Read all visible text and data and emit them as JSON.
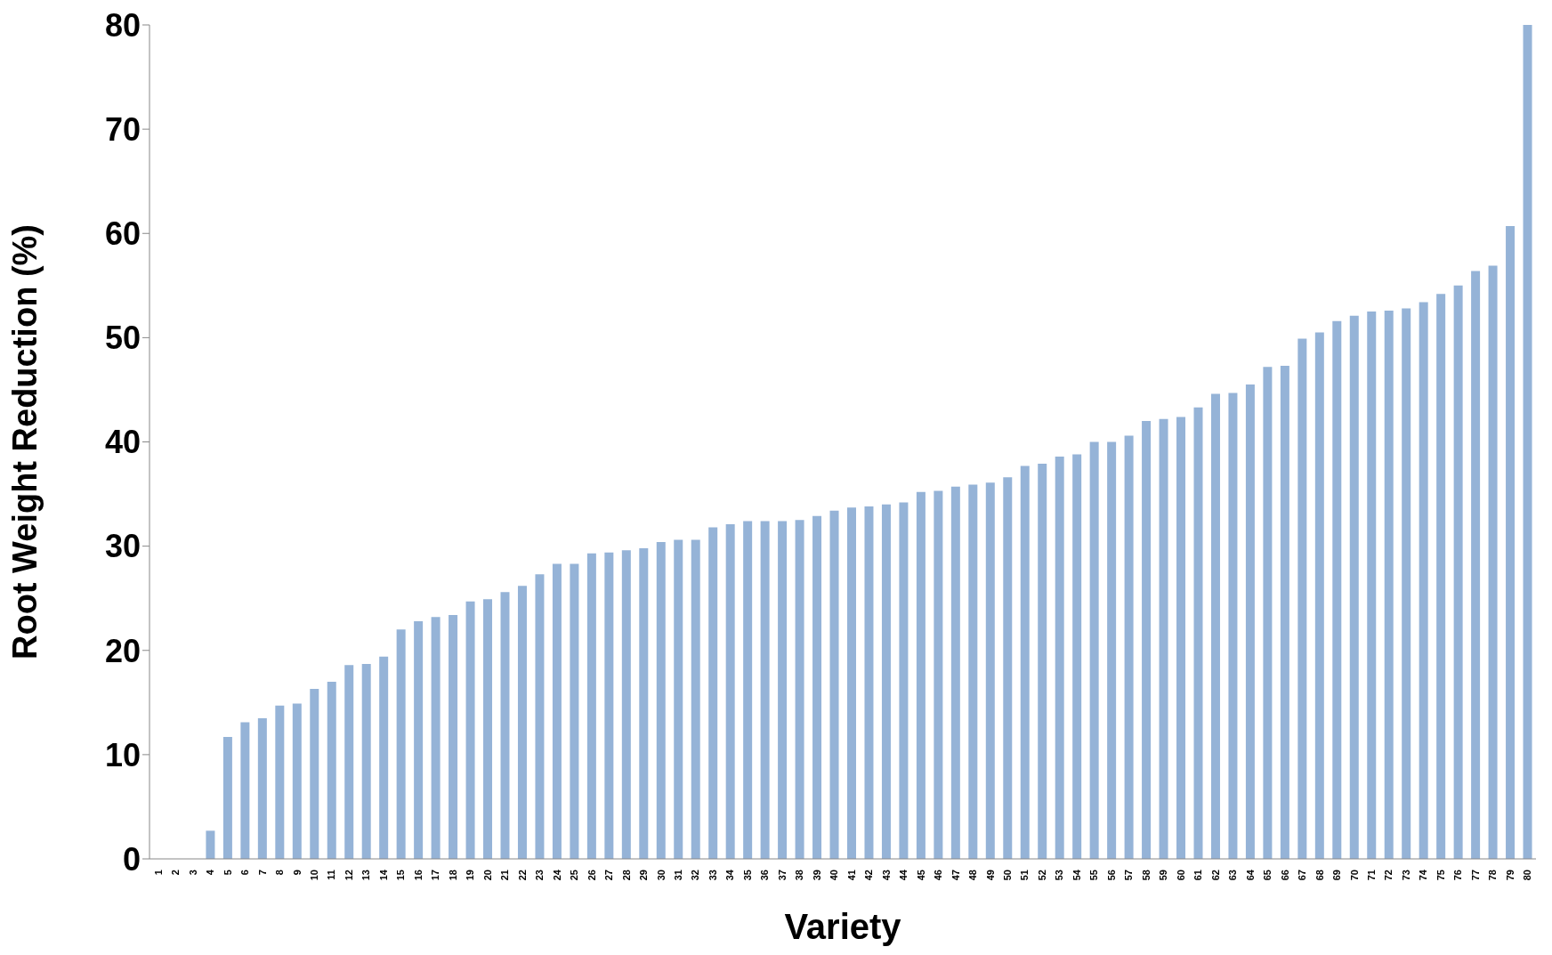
{
  "chart_data": {
    "type": "bar",
    "xlabel": "Variety",
    "ylabel": "Root Weight Reduction (%)",
    "categories": [
      "1",
      "2",
      "3",
      "4",
      "5",
      "6",
      "7",
      "8",
      "9",
      "10",
      "11",
      "12",
      "13",
      "14",
      "15",
      "16",
      "17",
      "18",
      "19",
      "20",
      "21",
      "22",
      "23",
      "24",
      "25",
      "26",
      "27",
      "28",
      "29",
      "30",
      "31",
      "32",
      "33",
      "34",
      "35",
      "36",
      "37",
      "38",
      "39",
      "40",
      "41",
      "42",
      "43",
      "44",
      "45",
      "46",
      "47",
      "48",
      "49",
      "50",
      "51",
      "52",
      "53",
      "54",
      "55",
      "56",
      "57",
      "58",
      "59",
      "60",
      "61",
      "62",
      "63",
      "64",
      "65",
      "66",
      "67",
      "68",
      "69",
      "70",
      "71",
      "72",
      "73",
      "74",
      "75",
      "76",
      "77",
      "78",
      "79",
      "80"
    ],
    "values": [
      0,
      0,
      0,
      2.7,
      11.7,
      13.1,
      13.5,
      14.7,
      14.9,
      16.3,
      17.0,
      18.6,
      18.7,
      19.4,
      22.0,
      22.8,
      23.2,
      23.4,
      24.7,
      24.9,
      25.6,
      26.2,
      27.3,
      28.3,
      28.3,
      29.3,
      29.4,
      29.6,
      29.8,
      30.4,
      30.6,
      30.6,
      31.8,
      32.1,
      32.4,
      32.4,
      32.4,
      32.5,
      32.9,
      33.4,
      33.7,
      33.8,
      34.0,
      34.2,
      35.2,
      35.3,
      35.7,
      35.9,
      36.1,
      36.6,
      37.7,
      37.9,
      38.6,
      38.8,
      40.0,
      40.0,
      40.6,
      42.0,
      42.2,
      42.4,
      43.3,
      44.6,
      44.7,
      45.5,
      47.2,
      47.3,
      49.9,
      50.5,
      51.6,
      52.1,
      52.5,
      52.6,
      52.8,
      53.4,
      54.2,
      55.0,
      56.4,
      56.9,
      60.7,
      80.0
    ],
    "color": "#95b3d7",
    "ylim": [
      0,
      80
    ],
    "yticks": [
      0,
      10,
      20,
      30,
      40,
      50,
      60,
      70,
      80
    ],
    "grid": false
  }
}
